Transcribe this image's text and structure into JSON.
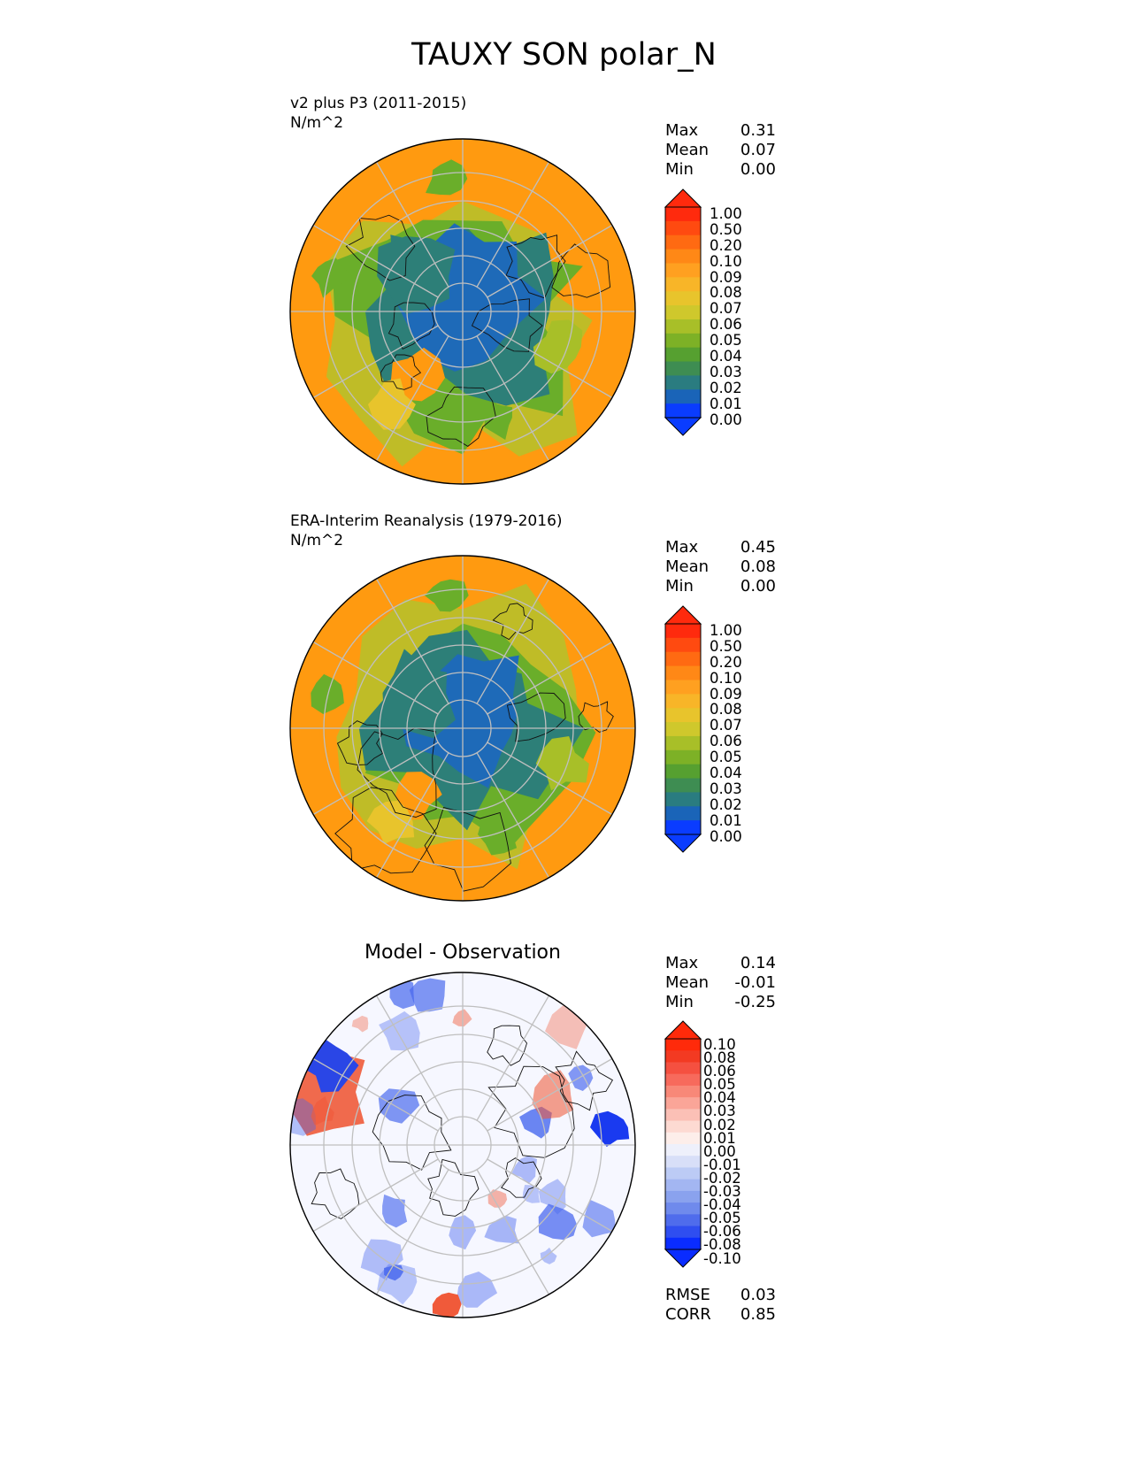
{
  "figure": {
    "title": "TAUXY SON polar_N"
  },
  "panels": [
    {
      "id": "test",
      "title": "v2 plus P3 (2011-2015)",
      "units": "N/m^2",
      "stats": [
        {
          "label": "Max",
          "value": "0.31"
        },
        {
          "label": "Mean",
          "value": "0.07"
        },
        {
          "label": "Min",
          "value": "0.00"
        }
      ]
    },
    {
      "id": "reference",
      "title": "ERA-Interim Reanalysis (1979-2016)",
      "units": "N/m^2",
      "stats": [
        {
          "label": "Max",
          "value": "0.45"
        },
        {
          "label": "Mean",
          "value": "0.08"
        },
        {
          "label": "Min",
          "value": "0.00"
        }
      ]
    },
    {
      "id": "difference",
      "title": "Model - Observation",
      "stats": [
        {
          "label": "Max",
          "value": "0.14"
        },
        {
          "label": "Mean",
          "value": "-0.01"
        },
        {
          "label": "Min",
          "value": "-0.25"
        }
      ],
      "metrics": [
        {
          "label": "RMSE",
          "value": "0.03"
        },
        {
          "label": "CORR",
          "value": "0.85"
        }
      ]
    }
  ],
  "colorbars": {
    "field_levels": [
      "1.00",
      "0.50",
      "0.20",
      "0.10",
      "0.09",
      "0.08",
      "0.07",
      "0.06",
      "0.05",
      "0.04",
      "0.03",
      "0.02",
      "0.01",
      "0.00"
    ],
    "field_colors": [
      "#ff2a0d",
      "#ff4a10",
      "#ff6a12",
      "#ff8816",
      "#ffa020",
      "#f8b528",
      "#e8c42c",
      "#cfc82c",
      "#a8bf28",
      "#7db126",
      "#56a030",
      "#3e8d52",
      "#2a7c80",
      "#1a64b8",
      "#0a3cff"
    ],
    "diff_levels": [
      "0.10",
      "0.08",
      "0.06",
      "0.05",
      "0.04",
      "0.03",
      "0.02",
      "0.01",
      "0.00",
      "-0.01",
      "-0.02",
      "-0.03",
      "-0.04",
      "-0.05",
      "-0.06",
      "-0.08",
      "-0.10"
    ],
    "diff_colors": [
      "#ff2a0a",
      "#f33a22",
      "#f55040",
      "#f76a5c",
      "#f88878",
      "#faa598",
      "#fbc0b6",
      "#fddad2",
      "#fdeeea",
      "#eef0fb",
      "#d8dff8",
      "#bccbf5",
      "#a3b6f2",
      "#8aa2ee",
      "#6f8aec",
      "#4f6cec",
      "#2f4ef0",
      "#0a2cff"
    ]
  },
  "maps": {
    "projection": "north-polar-stereographic",
    "field_palette": {
      "ocean": "#ff9a10",
      "mid": "#6aae2a",
      "low": "#2d7f78",
      "ice": "#1e6ab8"
    },
    "diff_palette": {
      "base": "#f6f7ff",
      "neg": "#4666ee",
      "pos": "#f05a3a"
    }
  }
}
